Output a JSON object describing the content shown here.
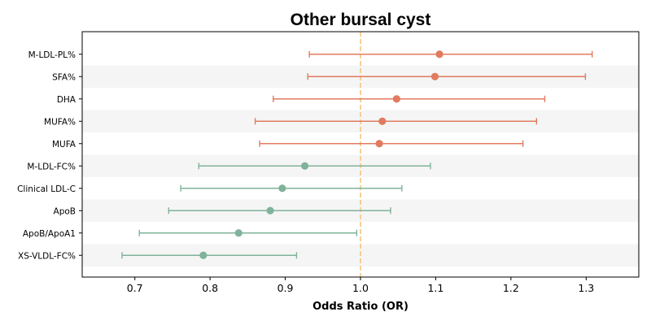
{
  "chart_data": {
    "type": "forest",
    "title": "Other bursal cyst",
    "xlabel": "Odds Ratio (OR)",
    "ylabel": "",
    "xlim": [
      0.63,
      1.37
    ],
    "x_ticks": [
      0.7,
      0.8,
      0.9,
      1.0,
      1.1,
      1.2,
      1.3
    ],
    "x_tick_labels": [
      "0.7",
      "0.8",
      "0.9",
      "1.0",
      "1.1",
      "1.2",
      "1.3"
    ],
    "reference_line": 1.0,
    "reference_color": "#f5c47f",
    "row_stripes": true,
    "stripe_color": "#f5f5f5",
    "colors": {
      "positive": "#e07b5f",
      "negative": "#7fb39a"
    },
    "rows": [
      {
        "label": "M-LDL-PL%",
        "or": 1.105,
        "lo": 0.932,
        "hi": 1.308,
        "group": "positive"
      },
      {
        "label": "SFA%",
        "or": 1.099,
        "lo": 0.93,
        "hi": 1.299,
        "group": "positive"
      },
      {
        "label": "DHA",
        "or": 1.048,
        "lo": 0.884,
        "hi": 1.245,
        "group": "positive"
      },
      {
        "label": "MUFA%",
        "or": 1.029,
        "lo": 0.86,
        "hi": 1.234,
        "group": "positive"
      },
      {
        "label": "MUFA",
        "or": 1.025,
        "lo": 0.866,
        "hi": 1.216,
        "group": "positive"
      },
      {
        "label": "M-LDL-FC%",
        "or": 0.926,
        "lo": 0.785,
        "hi": 1.093,
        "group": "negative"
      },
      {
        "label": "Clinical LDL-C",
        "or": 0.896,
        "lo": 0.761,
        "hi": 1.055,
        "group": "negative"
      },
      {
        "label": "ApoB",
        "or": 0.88,
        "lo": 0.745,
        "hi": 1.04,
        "group": "negative"
      },
      {
        "label": "ApoB/ApoA1",
        "or": 0.838,
        "lo": 0.706,
        "hi": 0.995,
        "group": "negative"
      },
      {
        "label": "XS-VLDL-FC%",
        "or": 0.791,
        "lo": 0.683,
        "hi": 0.915,
        "group": "negative"
      }
    ]
  }
}
